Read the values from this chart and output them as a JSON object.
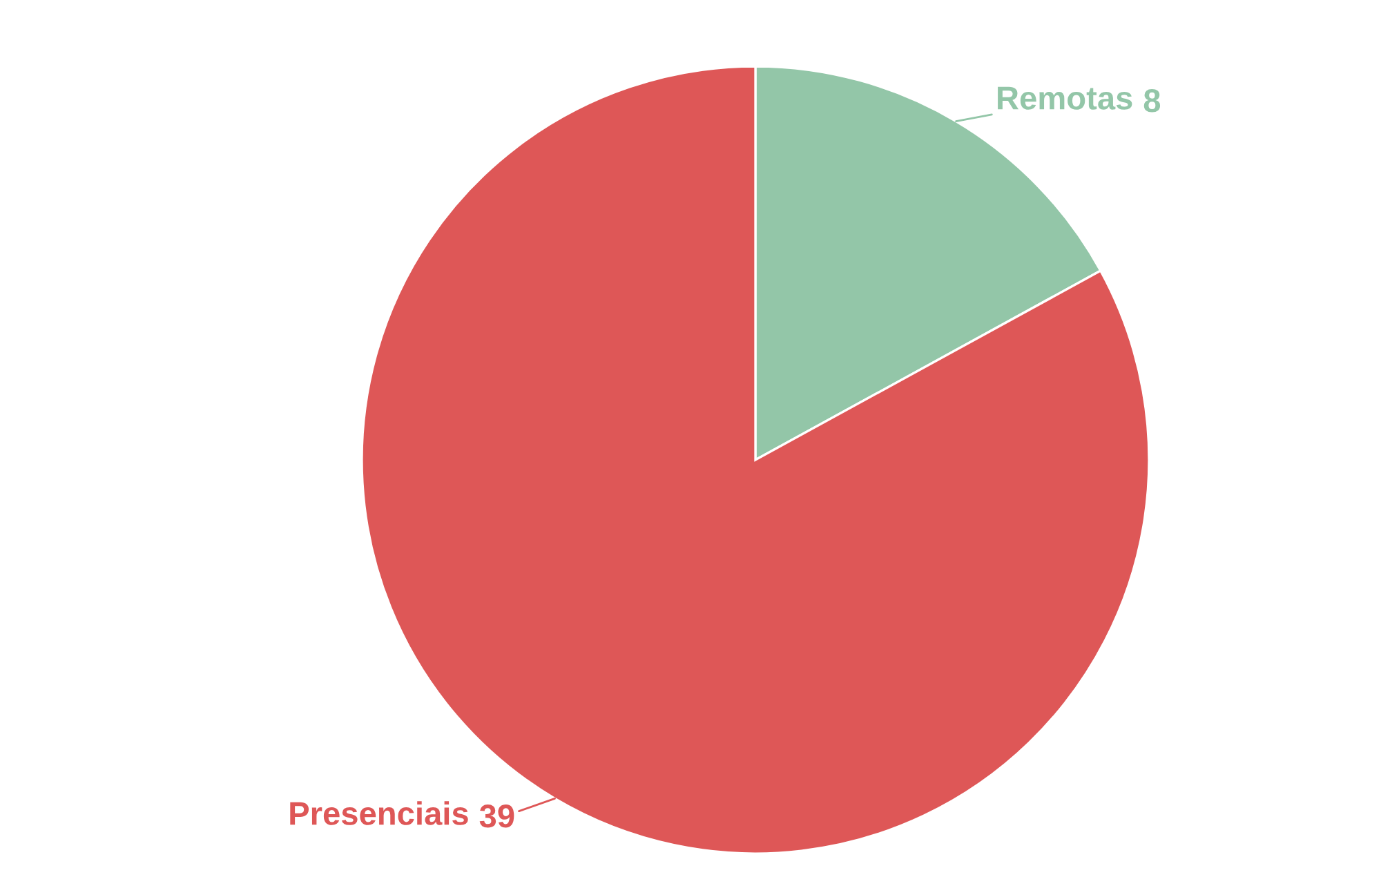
{
  "chart_data": {
    "type": "pie",
    "categories": [
      "Remotas",
      "Presenciais"
    ],
    "values": [
      8,
      39
    ],
    "colors": [
      "#93c6a8",
      "#de5757"
    ],
    "data_labels": true,
    "legend": false
  }
}
